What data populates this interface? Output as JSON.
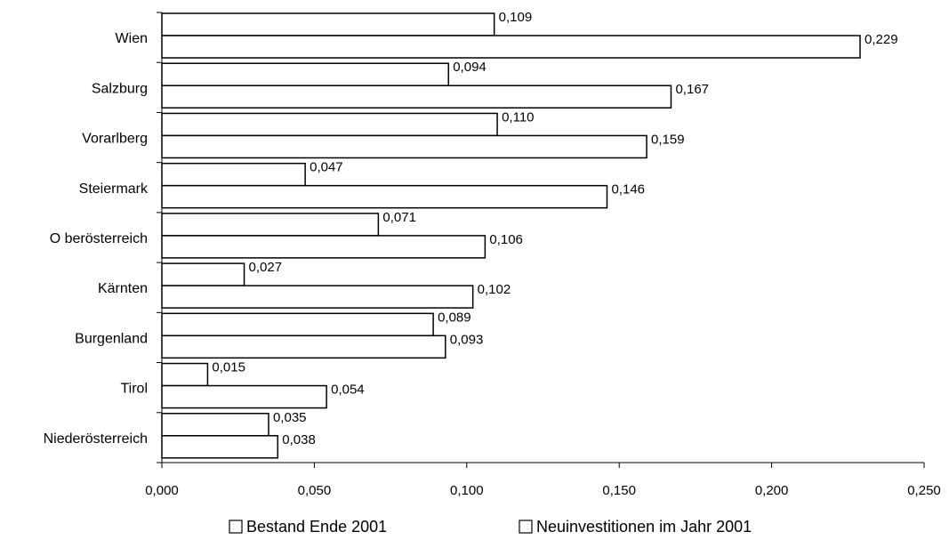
{
  "chart_data": {
    "type": "bar",
    "orientation": "horizontal",
    "categories": [
      "Wien",
      "Salzburg",
      "Vorarlberg",
      "Steiermark",
      "O berösterreich",
      "Kärnten",
      "Burgenland",
      "Tirol",
      "Niederösterreich"
    ],
    "series": [
      {
        "name": "Bestand Ende 2001",
        "values": [
          0.109,
          0.094,
          0.11,
          0.047,
          0.071,
          0.027,
          0.089,
          0.015,
          0.035
        ],
        "labels": [
          "0,109",
          "0,094",
          "0,110",
          "0,047",
          "0,071",
          "0,027",
          "0,089",
          "0,015",
          "0,035"
        ]
      },
      {
        "name": "Neuinvestitionen im Jahr 2001",
        "values": [
          0.229,
          0.167,
          0.159,
          0.146,
          0.106,
          0.102,
          0.093,
          0.054,
          0.038
        ],
        "labels": [
          "0,229",
          "0,167",
          "0,159",
          "0,146",
          "0,106",
          "0,102",
          "0,093",
          "0,054",
          "0,038"
        ]
      }
    ],
    "xlim": [
      0,
      0.25
    ],
    "ticks": [
      0,
      0.05,
      0.1,
      0.15,
      0.2,
      0.25
    ],
    "tick_labels": [
      "0,000",
      "0,050",
      "0,100",
      "0,150",
      "0,200",
      "0,250"
    ],
    "grid": false,
    "legend_position": "bottom",
    "bar_fill": "#ffffff",
    "bar_stroke": "#000000"
  }
}
